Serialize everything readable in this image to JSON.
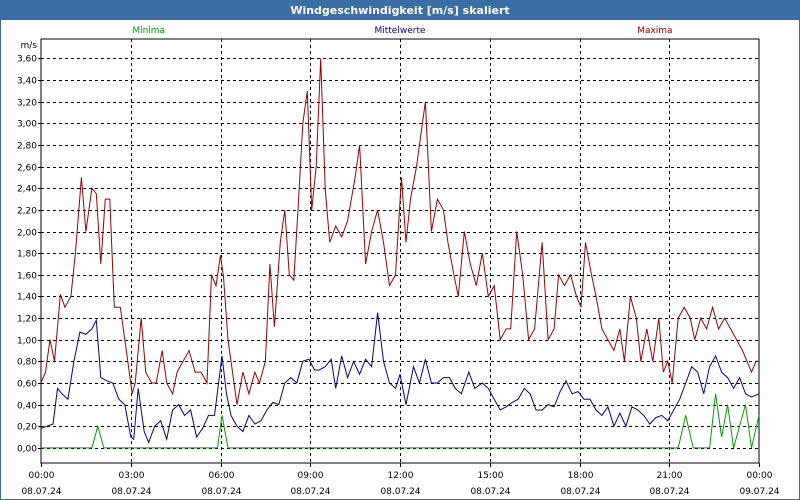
{
  "window": {
    "title": "Windgeschwindigkeit [m/s] skaliert"
  },
  "chart_data": {
    "type": "line",
    "title": "Windgeschwindigkeit [m/s] skaliert",
    "ylabel": "m/s",
    "xlabel": "",
    "ylim": [
      -0.14,
      3.78
    ],
    "xlim": [
      0,
      24
    ],
    "grid": true,
    "legend": "top",
    "y_ticks": [
      "3,60",
      "3,40",
      "3,20",
      "3,00",
      "2,80",
      "2,60",
      "2,40",
      "2,20",
      "2,00",
      "1,80",
      "1,60",
      "1,40",
      "1,20",
      "1,00",
      "0,80",
      "0,60",
      "0,40",
      "0,20",
      "0,00"
    ],
    "y_tick_values": [
      3.6,
      3.4,
      3.2,
      3.0,
      2.8,
      2.6,
      2.4,
      2.2,
      2.0,
      1.8,
      1.6,
      1.4,
      1.2,
      1.0,
      0.8,
      0.6,
      0.4,
      0.2,
      0.0
    ],
    "x_ticks": [
      {
        "time": "00:00",
        "date": "08.07.24",
        "h": 0
      },
      {
        "time": "03:00",
        "date": "08.07.24",
        "h": 3
      },
      {
        "time": "06:00",
        "date": "08.07.24",
        "h": 6
      },
      {
        "time": "09:00",
        "date": "08.07.24",
        "h": 9
      },
      {
        "time": "12:00",
        "date": "08.07.24",
        "h": 12
      },
      {
        "time": "15:00",
        "date": "08.07.24",
        "h": 15
      },
      {
        "time": "18:00",
        "date": "08.07.24",
        "h": 18
      },
      {
        "time": "21:00",
        "date": "08.07.24",
        "h": 21
      },
      {
        "time": "00:00",
        "date": "09.07.24",
        "h": 24
      }
    ],
    "series": [
      {
        "name": "Minima",
        "color": "#00a000",
        "points": [
          [
            0,
            0
          ],
          [
            1.7,
            0
          ],
          [
            1.9,
            0.2
          ],
          [
            2.1,
            0
          ],
          [
            5.9,
            0
          ],
          [
            6.05,
            0.3
          ],
          [
            6.25,
            0
          ],
          [
            21.3,
            0
          ],
          [
            21.55,
            0.3
          ],
          [
            21.8,
            0
          ],
          [
            22.35,
            0
          ],
          [
            22.55,
            0.5
          ],
          [
            22.75,
            0.1
          ],
          [
            22.95,
            0.4
          ],
          [
            23.15,
            0
          ],
          [
            23.55,
            0.4
          ],
          [
            23.75,
            0
          ],
          [
            24,
            0.3
          ]
        ]
      },
      {
        "name": "Mittelwerte",
        "color": "#0000a0",
        "points": [
          [
            0,
            0.18
          ],
          [
            0.2,
            0.2
          ],
          [
            0.4,
            0.22
          ],
          [
            0.55,
            0.55
          ],
          [
            0.7,
            0.5
          ],
          [
            0.9,
            0.45
          ],
          [
            1.1,
            0.8
          ],
          [
            1.3,
            1.07
          ],
          [
            1.5,
            1.05
          ],
          [
            1.7,
            1.1
          ],
          [
            1.85,
            1.18
          ],
          [
            2.0,
            0.65
          ],
          [
            2.2,
            0.62
          ],
          [
            2.4,
            0.6
          ],
          [
            2.6,
            0.45
          ],
          [
            2.8,
            0.4
          ],
          [
            3.0,
            0.1
          ],
          [
            3.1,
            0.08
          ],
          [
            3.25,
            0.55
          ],
          [
            3.45,
            0.15
          ],
          [
            3.6,
            0.05
          ],
          [
            3.8,
            0.2
          ],
          [
            4.0,
            0.25
          ],
          [
            4.2,
            0.08
          ],
          [
            4.4,
            0.35
          ],
          [
            4.6,
            0.4
          ],
          [
            4.8,
            0.3
          ],
          [
            5.0,
            0.35
          ],
          [
            5.2,
            0.1
          ],
          [
            5.4,
            0.18
          ],
          [
            5.6,
            0.3
          ],
          [
            5.8,
            0.3
          ],
          [
            6.05,
            0.85
          ],
          [
            6.2,
            0.5
          ],
          [
            6.35,
            0.3
          ],
          [
            6.55,
            0.2
          ],
          [
            6.75,
            0.15
          ],
          [
            6.95,
            0.3
          ],
          [
            7.15,
            0.22
          ],
          [
            7.35,
            0.25
          ],
          [
            7.55,
            0.35
          ],
          [
            7.75,
            0.42
          ],
          [
            7.95,
            0.4
          ],
          [
            8.15,
            0.6
          ],
          [
            8.35,
            0.65
          ],
          [
            8.55,
            0.6
          ],
          [
            8.75,
            0.8
          ],
          [
            8.95,
            0.82
          ],
          [
            9.15,
            0.72
          ],
          [
            9.3,
            0.72
          ],
          [
            9.5,
            0.75
          ],
          [
            9.7,
            0.82
          ],
          [
            9.85,
            0.55
          ],
          [
            10.05,
            0.85
          ],
          [
            10.25,
            0.65
          ],
          [
            10.45,
            0.8
          ],
          [
            10.65,
            0.68
          ],
          [
            10.85,
            0.82
          ],
          [
            11.05,
            0.75
          ],
          [
            11.25,
            1.25
          ],
          [
            11.45,
            0.8
          ],
          [
            11.65,
            0.6
          ],
          [
            11.85,
            0.55
          ],
          [
            12.0,
            0.68
          ],
          [
            12.2,
            0.4
          ],
          [
            12.45,
            0.75
          ],
          [
            12.65,
            0.6
          ],
          [
            12.85,
            0.82
          ],
          [
            13.05,
            0.6
          ],
          [
            13.25,
            0.6
          ],
          [
            13.45,
            0.65
          ],
          [
            13.65,
            0.65
          ],
          [
            13.85,
            0.55
          ],
          [
            14.05,
            0.5
          ],
          [
            14.3,
            0.7
          ],
          [
            14.5,
            0.55
          ],
          [
            14.75,
            0.6
          ],
          [
            14.95,
            0.55
          ],
          [
            15.15,
            0.45
          ],
          [
            15.35,
            0.35
          ],
          [
            15.55,
            0.38
          ],
          [
            15.75,
            0.42
          ],
          [
            15.95,
            0.45
          ],
          [
            16.15,
            0.55
          ],
          [
            16.35,
            0.5
          ],
          [
            16.55,
            0.35
          ],
          [
            16.75,
            0.35
          ],
          [
            16.95,
            0.4
          ],
          [
            17.15,
            0.38
          ],
          [
            17.35,
            0.52
          ],
          [
            17.55,
            0.62
          ],
          [
            17.75,
            0.5
          ],
          [
            17.95,
            0.52
          ],
          [
            18.15,
            0.45
          ],
          [
            18.35,
            0.45
          ],
          [
            18.55,
            0.35
          ],
          [
            18.75,
            0.3
          ],
          [
            18.95,
            0.38
          ],
          [
            19.15,
            0.2
          ],
          [
            19.35,
            0.32
          ],
          [
            19.55,
            0.2
          ],
          [
            19.75,
            0.38
          ],
          [
            19.95,
            0.35
          ],
          [
            20.15,
            0.3
          ],
          [
            20.35,
            0.22
          ],
          [
            20.55,
            0.28
          ],
          [
            20.75,
            0.3
          ],
          [
            20.95,
            0.25
          ],
          [
            21.15,
            0.35
          ],
          [
            21.35,
            0.45
          ],
          [
            21.55,
            0.6
          ],
          [
            21.75,
            0.75
          ],
          [
            21.95,
            0.7
          ],
          [
            22.15,
            0.5
          ],
          [
            22.35,
            0.75
          ],
          [
            22.55,
            0.85
          ],
          [
            22.75,
            0.7
          ],
          [
            22.95,
            0.65
          ],
          [
            23.15,
            0.55
          ],
          [
            23.35,
            0.65
          ],
          [
            23.55,
            0.5
          ],
          [
            23.75,
            0.47
          ],
          [
            24.0,
            0.5
          ]
        ]
      },
      {
        "name": "Maxima",
        "color": "#a00000",
        "points": [
          [
            0,
            0.6
          ],
          [
            0.15,
            0.7
          ],
          [
            0.3,
            1.0
          ],
          [
            0.45,
            0.8
          ],
          [
            0.65,
            1.42
          ],
          [
            0.8,
            1.3
          ],
          [
            1.0,
            1.4
          ],
          [
            1.15,
            1.8
          ],
          [
            1.35,
            2.5
          ],
          [
            1.5,
            2.0
          ],
          [
            1.7,
            2.4
          ],
          [
            1.85,
            2.35
          ],
          [
            2.0,
            1.7
          ],
          [
            2.15,
            2.3
          ],
          [
            2.3,
            2.3
          ],
          [
            2.45,
            1.3
          ],
          [
            2.65,
            1.3
          ],
          [
            2.85,
            0.9
          ],
          [
            3.05,
            0.5
          ],
          [
            3.15,
            0.6
          ],
          [
            3.35,
            1.2
          ],
          [
            3.5,
            0.7
          ],
          [
            3.7,
            0.6
          ],
          [
            3.85,
            0.6
          ],
          [
            4.05,
            0.9
          ],
          [
            4.2,
            0.6
          ],
          [
            4.4,
            0.5
          ],
          [
            4.55,
            0.7
          ],
          [
            4.75,
            0.8
          ],
          [
            4.95,
            0.9
          ],
          [
            5.15,
            0.7
          ],
          [
            5.35,
            0.7
          ],
          [
            5.55,
            0.6
          ],
          [
            5.7,
            1.6
          ],
          [
            5.85,
            1.5
          ],
          [
            6.0,
            1.78
          ],
          [
            6.1,
            1.58
          ],
          [
            6.25,
            1.0
          ],
          [
            6.4,
            0.7
          ],
          [
            6.55,
            0.4
          ],
          [
            6.75,
            0.7
          ],
          [
            6.95,
            0.5
          ],
          [
            7.15,
            0.7
          ],
          [
            7.3,
            0.6
          ],
          [
            7.5,
            0.8
          ],
          [
            7.65,
            1.7
          ],
          [
            7.8,
            1.12
          ],
          [
            8.0,
            1.9
          ],
          [
            8.15,
            2.2
          ],
          [
            8.3,
            1.6
          ],
          [
            8.45,
            1.55
          ],
          [
            8.6,
            2.25
          ],
          [
            8.75,
            3.0
          ],
          [
            8.9,
            3.3
          ],
          [
            9.05,
            2.2
          ],
          [
            9.2,
            2.6
          ],
          [
            9.35,
            3.6
          ],
          [
            9.5,
            2.4
          ],
          [
            9.65,
            1.9
          ],
          [
            9.85,
            2.05
          ],
          [
            10.05,
            1.95
          ],
          [
            10.25,
            2.1
          ],
          [
            10.5,
            2.5
          ],
          [
            10.65,
            2.8
          ],
          [
            10.85,
            1.7
          ],
          [
            11.05,
            2.0
          ],
          [
            11.25,
            2.2
          ],
          [
            11.45,
            1.9
          ],
          [
            11.65,
            1.5
          ],
          [
            11.85,
            1.6
          ],
          [
            12.05,
            2.5
          ],
          [
            12.2,
            1.9
          ],
          [
            12.35,
            2.3
          ],
          [
            12.55,
            2.6
          ],
          [
            12.7,
            2.9
          ],
          [
            12.85,
            3.2
          ],
          [
            13.05,
            2.0
          ],
          [
            13.25,
            2.3
          ],
          [
            13.45,
            2.2
          ],
          [
            13.6,
            1.9
          ],
          [
            13.8,
            1.6
          ],
          [
            13.95,
            1.4
          ],
          [
            14.15,
            2.0
          ],
          [
            14.35,
            1.7
          ],
          [
            14.55,
            1.5
          ],
          [
            14.75,
            1.8
          ],
          [
            14.95,
            1.4
          ],
          [
            15.15,
            1.5
          ],
          [
            15.35,
            1.0
          ],
          [
            15.55,
            1.1
          ],
          [
            15.7,
            1.1
          ],
          [
            15.9,
            2.0
          ],
          [
            16.1,
            1.6
          ],
          [
            16.3,
            1.0
          ],
          [
            16.5,
            1.1
          ],
          [
            16.75,
            1.9
          ],
          [
            16.95,
            1.0
          ],
          [
            17.15,
            1.1
          ],
          [
            17.3,
            1.6
          ],
          [
            17.5,
            1.5
          ],
          [
            17.7,
            1.6
          ],
          [
            17.9,
            1.4
          ],
          [
            18.05,
            1.3
          ],
          [
            18.2,
            1.9
          ],
          [
            18.4,
            1.6
          ],
          [
            18.55,
            1.4
          ],
          [
            18.75,
            1.1
          ],
          [
            18.95,
            1.0
          ],
          [
            19.15,
            0.9
          ],
          [
            19.35,
            1.1
          ],
          [
            19.5,
            0.8
          ],
          [
            19.7,
            1.4
          ],
          [
            19.9,
            1.2
          ],
          [
            20.05,
            0.8
          ],
          [
            20.25,
            1.1
          ],
          [
            20.45,
            0.8
          ],
          [
            20.65,
            1.2
          ],
          [
            20.8,
            0.7
          ],
          [
            20.95,
            0.8
          ],
          [
            21.1,
            0.6
          ],
          [
            21.3,
            1.2
          ],
          [
            21.5,
            1.3
          ],
          [
            21.7,
            1.2
          ],
          [
            21.85,
            1.0
          ],
          [
            22.05,
            1.2
          ],
          [
            22.25,
            1.1
          ],
          [
            22.45,
            1.3
          ],
          [
            22.65,
            1.1
          ],
          [
            22.85,
            1.2
          ],
          [
            23.05,
            1.1
          ],
          [
            23.25,
            1.0
          ],
          [
            23.45,
            0.9
          ],
          [
            23.6,
            0.8
          ],
          [
            23.75,
            0.7
          ],
          [
            23.9,
            0.8
          ],
          [
            24.0,
            0.8
          ]
        ]
      }
    ]
  }
}
